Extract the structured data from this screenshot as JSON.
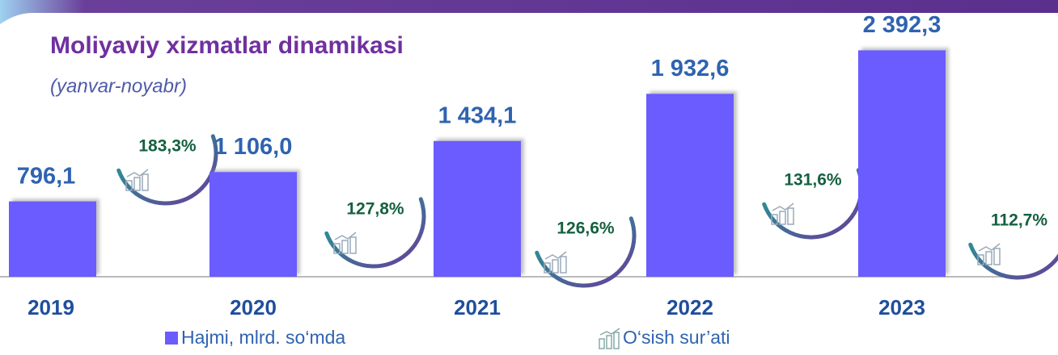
{
  "chart_data": {
    "type": "bar",
    "title": "Moliyaviy xizmatlar dinamikasi",
    "subtitle": "(yanvar-noyabr)",
    "categories": [
      "2019",
      "2020",
      "2021",
      "2022",
      "2023"
    ],
    "ylim": [
      0,
      2600
    ],
    "series": [
      {
        "name": "Hajmi, mlrd. so‘mda",
        "color": "#6a5cff",
        "values": [
          796.1,
          1106.0,
          1434.1,
          1932.6,
          2392.3
        ],
        "value_labels": [
          "796,1",
          "1 106,0",
          "1 434,1",
          "1 932,6",
          "2 392,3"
        ]
      },
      {
        "name": "O‘sish sur’ati",
        "color": "#1a9a8a",
        "values": [
          183.3,
          127.8,
          126.6,
          131.6,
          112.7
        ],
        "value_labels": [
          "183,3%",
          "127,8%",
          "126,6%",
          "131,6%",
          "112,7%"
        ]
      }
    ]
  }
}
